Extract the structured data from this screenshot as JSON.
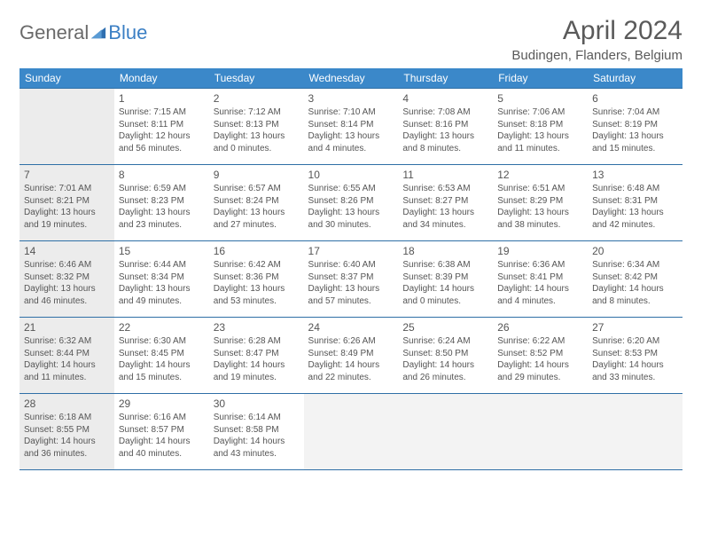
{
  "logo": {
    "general": "General",
    "blue": "Blue"
  },
  "title": "April 2024",
  "location": "Budingen, Flanders, Belgium",
  "colors": {
    "header_bg": "#3b88c9",
    "header_text": "#ffffff",
    "border": "#2f6fa6",
    "shaded": "#ececec",
    "dimmed": "#f3f3f3",
    "text": "#555555"
  },
  "dayHeaders": [
    "Sunday",
    "Monday",
    "Tuesday",
    "Wednesday",
    "Thursday",
    "Friday",
    "Saturday"
  ],
  "weeks": [
    [
      {
        "shaded": true
      },
      {
        "num": "1",
        "sunrise": "7:15 AM",
        "sunset": "8:11 PM",
        "daylight": "12 hours and 56 minutes."
      },
      {
        "num": "2",
        "sunrise": "7:12 AM",
        "sunset": "8:13 PM",
        "daylight": "13 hours and 0 minutes."
      },
      {
        "num": "3",
        "sunrise": "7:10 AM",
        "sunset": "8:14 PM",
        "daylight": "13 hours and 4 minutes."
      },
      {
        "num": "4",
        "sunrise": "7:08 AM",
        "sunset": "8:16 PM",
        "daylight": "13 hours and 8 minutes."
      },
      {
        "num": "5",
        "sunrise": "7:06 AM",
        "sunset": "8:18 PM",
        "daylight": "13 hours and 11 minutes."
      },
      {
        "num": "6",
        "sunrise": "7:04 AM",
        "sunset": "8:19 PM",
        "daylight": "13 hours and 15 minutes."
      }
    ],
    [
      {
        "num": "7",
        "shaded": true,
        "sunrise": "7:01 AM",
        "sunset": "8:21 PM",
        "daylight": "13 hours and 19 minutes."
      },
      {
        "num": "8",
        "sunrise": "6:59 AM",
        "sunset": "8:23 PM",
        "daylight": "13 hours and 23 minutes."
      },
      {
        "num": "9",
        "sunrise": "6:57 AM",
        "sunset": "8:24 PM",
        "daylight": "13 hours and 27 minutes."
      },
      {
        "num": "10",
        "sunrise": "6:55 AM",
        "sunset": "8:26 PM",
        "daylight": "13 hours and 30 minutes."
      },
      {
        "num": "11",
        "sunrise": "6:53 AM",
        "sunset": "8:27 PM",
        "daylight": "13 hours and 34 minutes."
      },
      {
        "num": "12",
        "sunrise": "6:51 AM",
        "sunset": "8:29 PM",
        "daylight": "13 hours and 38 minutes."
      },
      {
        "num": "13",
        "sunrise": "6:48 AM",
        "sunset": "8:31 PM",
        "daylight": "13 hours and 42 minutes."
      }
    ],
    [
      {
        "num": "14",
        "shaded": true,
        "sunrise": "6:46 AM",
        "sunset": "8:32 PM",
        "daylight": "13 hours and 46 minutes."
      },
      {
        "num": "15",
        "sunrise": "6:44 AM",
        "sunset": "8:34 PM",
        "daylight": "13 hours and 49 minutes."
      },
      {
        "num": "16",
        "sunrise": "6:42 AM",
        "sunset": "8:36 PM",
        "daylight": "13 hours and 53 minutes."
      },
      {
        "num": "17",
        "sunrise": "6:40 AM",
        "sunset": "8:37 PM",
        "daylight": "13 hours and 57 minutes."
      },
      {
        "num": "18",
        "sunrise": "6:38 AM",
        "sunset": "8:39 PM",
        "daylight": "14 hours and 0 minutes."
      },
      {
        "num": "19",
        "sunrise": "6:36 AM",
        "sunset": "8:41 PM",
        "daylight": "14 hours and 4 minutes."
      },
      {
        "num": "20",
        "sunrise": "6:34 AM",
        "sunset": "8:42 PM",
        "daylight": "14 hours and 8 minutes."
      }
    ],
    [
      {
        "num": "21",
        "shaded": true,
        "sunrise": "6:32 AM",
        "sunset": "8:44 PM",
        "daylight": "14 hours and 11 minutes."
      },
      {
        "num": "22",
        "sunrise": "6:30 AM",
        "sunset": "8:45 PM",
        "daylight": "14 hours and 15 minutes."
      },
      {
        "num": "23",
        "sunrise": "6:28 AM",
        "sunset": "8:47 PM",
        "daylight": "14 hours and 19 minutes."
      },
      {
        "num": "24",
        "sunrise": "6:26 AM",
        "sunset": "8:49 PM",
        "daylight": "14 hours and 22 minutes."
      },
      {
        "num": "25",
        "sunrise": "6:24 AM",
        "sunset": "8:50 PM",
        "daylight": "14 hours and 26 minutes."
      },
      {
        "num": "26",
        "sunrise": "6:22 AM",
        "sunset": "8:52 PM",
        "daylight": "14 hours and 29 minutes."
      },
      {
        "num": "27",
        "sunrise": "6:20 AM",
        "sunset": "8:53 PM",
        "daylight": "14 hours and 33 minutes."
      }
    ],
    [
      {
        "num": "28",
        "shaded": true,
        "sunrise": "6:18 AM",
        "sunset": "8:55 PM",
        "daylight": "14 hours and 36 minutes."
      },
      {
        "num": "29",
        "sunrise": "6:16 AM",
        "sunset": "8:57 PM",
        "daylight": "14 hours and 40 minutes."
      },
      {
        "num": "30",
        "sunrise": "6:14 AM",
        "sunset": "8:58 PM",
        "daylight": "14 hours and 43 minutes."
      },
      {
        "dimmed": true
      },
      {
        "dimmed": true
      },
      {
        "dimmed": true
      },
      {
        "dimmed": true
      }
    ]
  ]
}
